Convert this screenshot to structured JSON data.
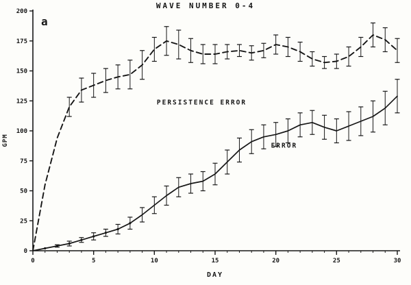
{
  "chart_data": {
    "type": "line",
    "title": "WAVE NUMBER 0-4",
    "panel_label": "a",
    "xlabel": "DAY",
    "ylabel": "GPM",
    "xlim": [
      0,
      30
    ],
    "ylim": [
      0,
      200
    ],
    "xticks": [
      0,
      5,
      10,
      15,
      20,
      25,
      30
    ],
    "yticks": [
      0,
      25,
      50,
      75,
      100,
      125,
      150,
      175,
      200
    ],
    "grid": false,
    "legend": "inline annotations",
    "x": [
      0,
      1,
      2,
      3,
      4,
      5,
      6,
      7,
      8,
      9,
      10,
      11,
      12,
      13,
      14,
      15,
      16,
      17,
      18,
      19,
      20,
      21,
      22,
      23,
      24,
      25,
      26,
      27,
      28,
      29,
      30
    ],
    "series": [
      {
        "name": "PERSISTENCE ERROR",
        "style": "dashed",
        "values": [
          0,
          55,
          94,
          120,
          134,
          138,
          142,
          145,
          147,
          155,
          168,
          175,
          172,
          167,
          164,
          164,
          166,
          167,
          165,
          167,
          172,
          170,
          166,
          160,
          157,
          158,
          162,
          170,
          180,
          176,
          167
        ],
        "errors": [
          0,
          0,
          0,
          8,
          10,
          10,
          10,
          10,
          12,
          12,
          10,
          12,
          12,
          10,
          8,
          8,
          6,
          5,
          6,
          6,
          8,
          8,
          8,
          6,
          5,
          6,
          8,
          8,
          10,
          10,
          10
        ]
      },
      {
        "name": "ERROR",
        "style": "solid",
        "values": [
          0,
          2,
          4,
          6,
          9,
          12,
          15,
          18,
          23,
          30,
          38,
          46,
          53,
          56,
          58,
          64,
          74,
          84,
          91,
          95,
          97,
          100,
          105,
          107,
          103,
          100,
          104,
          108,
          112,
          119,
          129
        ],
        "errors": [
          0,
          0,
          1,
          2,
          2,
          3,
          3,
          4,
          5,
          6,
          7,
          8,
          8,
          8,
          8,
          9,
          10,
          10,
          10,
          10,
          10,
          10,
          10,
          10,
          10,
          10,
          12,
          12,
          13,
          14,
          14
        ]
      }
    ],
    "annotations": [
      {
        "text": "PERSISTENCE ERROR",
        "x": 10.2,
        "y": 122
      },
      {
        "text": "ERROR",
        "x": 19.6,
        "y": 86
      }
    ]
  }
}
